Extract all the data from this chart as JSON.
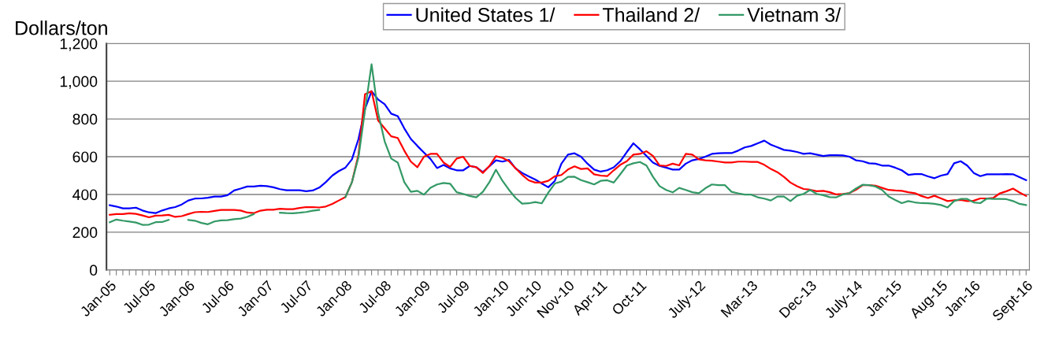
{
  "chart_data": {
    "type": "line",
    "ylabel": "Dollars/ton",
    "categories": [
      "Jan-05",
      null,
      null,
      null,
      null,
      null,
      "Jul-05",
      null,
      null,
      null,
      null,
      null,
      "Jan-06",
      null,
      null,
      null,
      null,
      null,
      "Jul-06",
      null,
      null,
      null,
      null,
      null,
      "Jan-07",
      null,
      null,
      null,
      null,
      null,
      "Jul-07",
      null,
      null,
      null,
      null,
      null,
      "Jan-08",
      null,
      null,
      null,
      null,
      null,
      "Jul-08",
      null,
      null,
      null,
      null,
      null,
      "Jan-09",
      null,
      null,
      null,
      null,
      null,
      "Jul-09",
      null,
      null,
      null,
      null,
      null,
      "Jan-10",
      null,
      null,
      null,
      null,
      "Jun-10",
      null,
      null,
      null,
      null,
      "Nov-10",
      null,
      null,
      null,
      null,
      "Apr-11",
      null,
      null,
      null,
      null,
      null,
      "Oct-11",
      null,
      null,
      null,
      null,
      null,
      null,
      null,
      null,
      "July-12",
      null,
      null,
      null,
      null,
      null,
      null,
      null,
      "Mar-13",
      null,
      null,
      null,
      null,
      null,
      null,
      null,
      null,
      "Dec-13",
      null,
      null,
      null,
      null,
      null,
      null,
      "July-14",
      null,
      null,
      null,
      null,
      null,
      "Jan-15",
      null,
      null,
      null,
      null,
      null,
      null,
      "Aug-15",
      null,
      null,
      null,
      null,
      "Jan-16",
      null,
      null,
      null,
      null,
      null,
      null,
      null,
      "Sept-16"
    ],
    "series": [
      {
        "name": "United States 1/",
        "color": "#0000ff",
        "values": [
          343,
          336,
          326,
          326,
          330,
          315,
          305,
          301,
          315,
          326,
          333,
          347,
          368,
          378,
          379,
          383,
          389,
          389,
          396,
          421,
          431,
          442,
          442,
          446,
          444,
          438,
          428,
          422,
          422,
          422,
          417,
          421,
          436,
          465,
          500,
          524,
          542,
          586,
          694,
          854,
          947,
          903,
          878,
          828,
          815,
          750,
          694,
          657,
          622,
          588,
          540,
          556,
          538,
          528,
          528,
          551,
          544,
          518,
          549,
          581,
          574,
          583,
          538,
          514,
          496,
          479,
          458,
          438,
          472,
          563,
          611,
          618,
          600,
          563,
          532,
          521,
          528,
          544,
          576,
          625,
          671,
          639,
          604,
          569,
          551,
          542,
          532,
          532,
          563,
          581,
          588,
          600,
          615,
          618,
          619,
          619,
          632,
          649,
          657,
          671,
          685,
          664,
          650,
          636,
          632,
          625,
          615,
          618,
          611,
          604,
          608,
          608,
          607,
          600,
          581,
          576,
          565,
          563,
          553,
          553,
          542,
          528,
          504,
          508,
          508,
          496,
          486,
          500,
          508,
          565,
          576,
          553,
          514,
          497,
          507,
          507,
          507,
          508,
          507,
          492,
          476
        ]
      },
      {
        "name": "Thailand 2/",
        "color": "#ff0000",
        "values": [
          292,
          296,
          296,
          300,
          297,
          289,
          279,
          288,
          289,
          292,
          281,
          285,
          296,
          306,
          308,
          307,
          313,
          318,
          318,
          318,
          315,
          304,
          301,
          314,
          319,
          319,
          324,
          322,
          322,
          328,
          333,
          333,
          331,
          336,
          350,
          368,
          386,
          465,
          611,
          931,
          947,
          792,
          750,
          708,
          699,
          632,
          574,
          544,
          600,
          615,
          615,
          569,
          546,
          590,
          600,
          551,
          544,
          514,
          551,
          603,
          594,
          576,
          539,
          504,
          475,
          463,
          463,
          472,
          496,
          503,
          532,
          549,
          535,
          538,
          507,
          500,
          497,
          528,
          557,
          576,
          611,
          615,
          629,
          604,
          554,
          551,
          563,
          554,
          615,
          611,
          586,
          581,
          579,
          574,
          569,
          569,
          574,
          574,
          572,
          572,
          557,
          535,
          518,
          493,
          463,
          444,
          429,
          425,
          417,
          419,
          412,
          400,
          403,
          407,
          425,
          449,
          449,
          446,
          435,
          424,
          421,
          419,
          412,
          407,
          392,
          381,
          393,
          379,
          365,
          369,
          371,
          365,
          367,
          379,
          379,
          382,
          406,
          417,
          431,
          410,
          392
        ]
      },
      {
        "name": "Vietnam 3/",
        "color": "#339966",
        "values": [
          253,
          267,
          261,
          256,
          251,
          239,
          240,
          253,
          254,
          265,
          null,
          null,
          265,
          261,
          249,
          242,
          257,
          263,
          264,
          269,
          272,
          281,
          296,
          null,
          null,
          null,
          303,
          301,
          300,
          303,
          307,
          314,
          318,
          null,
          null,
          null,
          386,
          465,
          597,
          847,
          1090,
          833,
          681,
          590,
          569,
          465,
          414,
          419,
          399,
          435,
          453,
          461,
          457,
          412,
          403,
          392,
          385,
          414,
          465,
          531,
          472,
          424,
          382,
          351,
          353,
          360,
          353,
          410,
          458,
          468,
          493,
          494,
          476,
          465,
          453,
          472,
          475,
          463,
          507,
          553,
          565,
          572,
          553,
          493,
          444,
          424,
          411,
          435,
          424,
          412,
          407,
          433,
          453,
          449,
          449,
          414,
          406,
          399,
          399,
          385,
          378,
          368,
          389,
          389,
          365,
          393,
          403,
          424,
          403,
          396,
          386,
          385,
          400,
          407,
          431,
          451,
          449,
          442,
          424,
          389,
          371,
          354,
          365,
          358,
          354,
          353,
          350,
          344,
          331,
          365,
          376,
          376,
          358,
          354,
          378,
          376,
          376,
          375,
          365,
          350,
          344
        ]
      }
    ],
    "ylim": [
      0,
      1200
    ],
    "yticks": [
      0,
      200,
      400,
      600,
      800,
      {
        "value": 1000,
        "label": "1,000"
      },
      {
        "value": 1200,
        "label": "1,200"
      }
    ],
    "grid": "y",
    "legend": "top",
    "marker": "none",
    "line_style": "solid"
  }
}
